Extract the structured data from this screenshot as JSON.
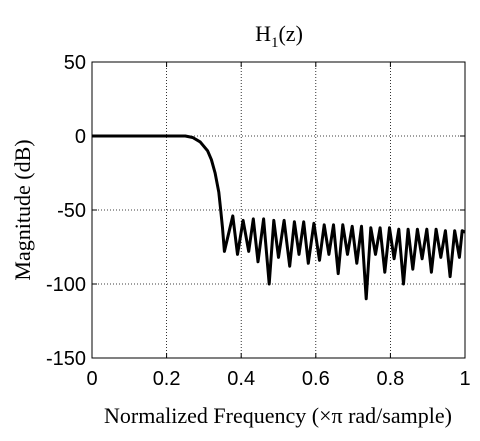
{
  "chart_data": {
    "type": "line",
    "title": {
      "main": "H",
      "subscript": "1",
      "rest": "(z)"
    },
    "xlabel": "Normalized Frequency  (×π rad/sample)",
    "ylabel": "Magnitude (dB)",
    "xlim": [
      0,
      1
    ],
    "ylim": [
      -150,
      50
    ],
    "xticks": [
      0,
      0.2,
      0.4,
      0.6,
      0.8,
      1
    ],
    "xtick_labels": [
      "0",
      "0.2",
      "0.4",
      "0.6",
      "0.8",
      "1"
    ],
    "yticks": [
      50,
      0,
      -50,
      -100,
      -150
    ],
    "ytick_labels": [
      "50",
      "0",
      "-50",
      "-100",
      "-150"
    ],
    "grid": true,
    "line_color": "#000000",
    "series": [
      {
        "x": [
          0,
          0.05,
          0.1,
          0.15,
          0.2,
          0.25,
          0.27,
          0.29,
          0.31,
          0.32,
          0.33,
          0.34,
          0.345,
          0.35,
          0.355
        ],
        "y": [
          0,
          0,
          0,
          0,
          0,
          0,
          -1,
          -4,
          -10,
          -16,
          -25,
          -38,
          -50,
          -62,
          -78
        ]
      }
    ],
    "stopband_lobes": {
      "x": [
        0.365,
        0.39,
        0.42,
        0.445,
        0.475,
        0.5,
        0.53,
        0.555,
        0.58,
        0.61,
        0.635,
        0.66,
        0.685,
        0.71,
        0.735,
        0.76,
        0.785,
        0.81,
        0.835,
        0.86,
        0.885,
        0.91,
        0.935,
        0.96,
        0.985,
        1.0
      ],
      "peak_y": [
        -54,
        -57,
        -56,
        -56,
        -57,
        -57,
        -58,
        -58,
        -59,
        -60,
        -60,
        -60,
        -61,
        -61,
        -62,
        -62,
        -62,
        -63,
        -63,
        -63,
        -63,
        -63,
        -64,
        -64,
        -64
      ],
      "null_y": [
        -72,
        -80,
        -78,
        -85,
        -100,
        -82,
        -88,
        -80,
        -86,
        -84,
        -80,
        -93,
        -80,
        -86,
        -110,
        -80,
        -92,
        -83,
        -100,
        -90,
        -83,
        -92,
        -82,
        -95,
        -82,
        -65
      ]
    }
  }
}
